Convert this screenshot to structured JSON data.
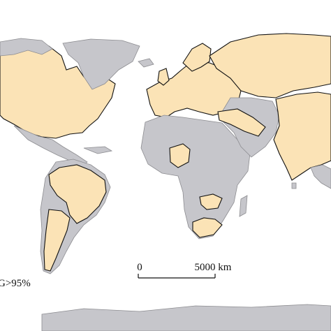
{
  "legend": {
    "label": "G>95%"
  },
  "scale_bar": {
    "start_label": "0",
    "end_label": "5000 km"
  }
}
